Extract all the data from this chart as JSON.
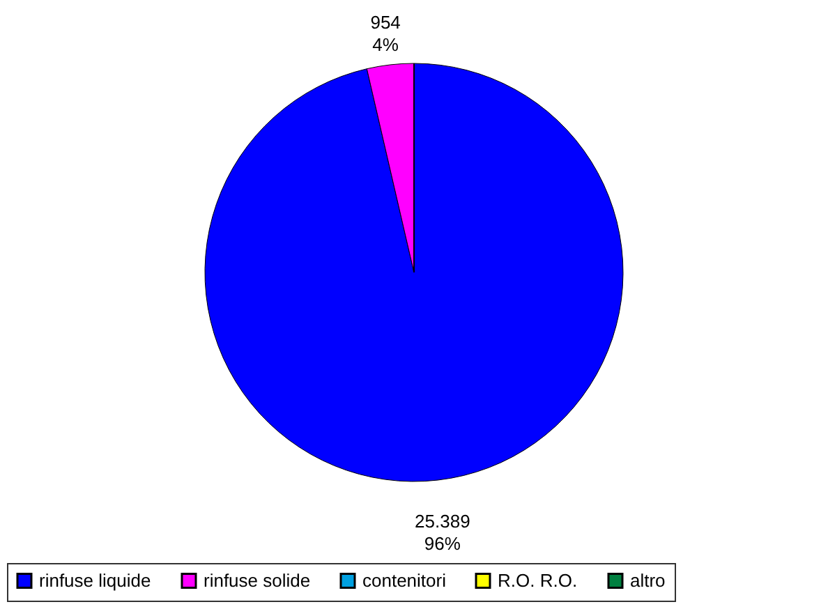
{
  "chart_data": {
    "type": "pie",
    "categories": [
      "rinfuse liquide",
      "rinfuse solide",
      "contenitori",
      "R.O. R.O.",
      "altro"
    ],
    "values": [
      25389,
      954,
      0,
      0,
      0
    ],
    "colors": [
      "#0000ff",
      "#ff00ff",
      "#00a0e0",
      "#ffff00",
      "#008040"
    ],
    "value_labels": [
      "25.389\n96%",
      "954\n4%",
      null,
      null,
      null
    ],
    "legend": "bottom"
  }
}
